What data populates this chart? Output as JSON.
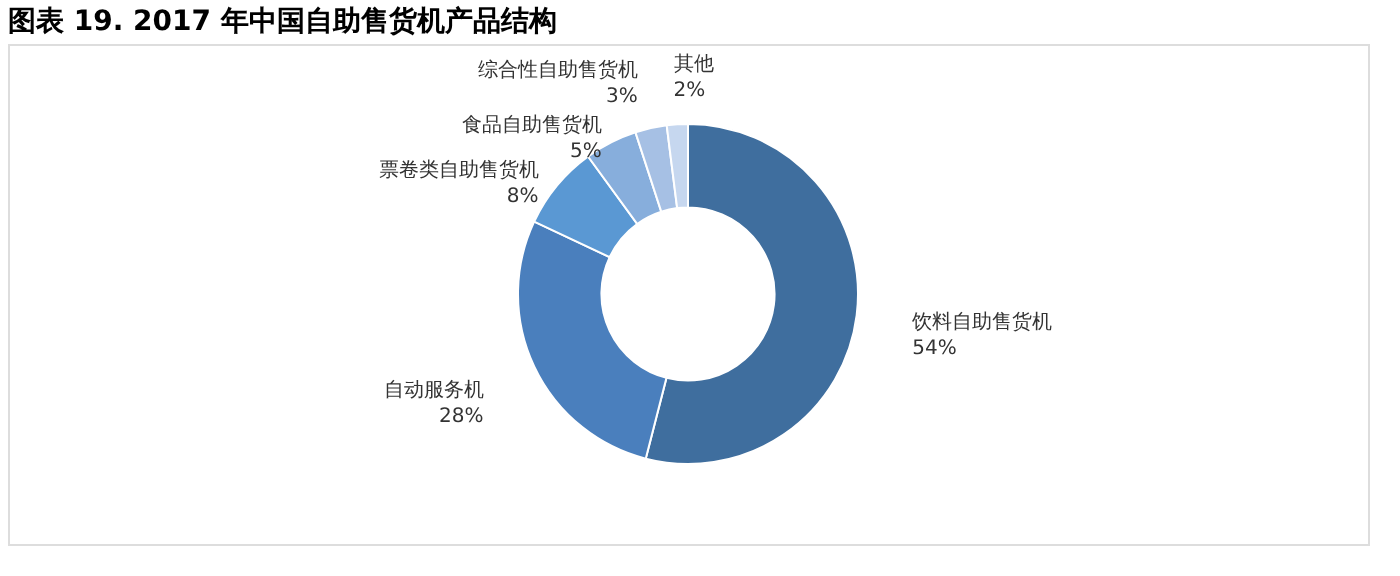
{
  "chart_data": {
    "type": "donut",
    "title": "图表 19. 2017 年中国自助售货机产品结构",
    "categories": [
      "饮料自助售货机",
      "自动服务机",
      "票卷类自助售货机",
      "食品自助售货机",
      "综合性自助售货机",
      "其他"
    ],
    "values": [
      54,
      28,
      8,
      5,
      3,
      2
    ],
    "value_labels": [
      "54%",
      "28%",
      "8%",
      "5%",
      "3%",
      "2%"
    ],
    "colors": [
      "#3f6e9e",
      "#4a7fbd",
      "#5a98d3",
      "#87aedc",
      "#a6c0e4",
      "#c6d7ef"
    ],
    "legend": false
  }
}
